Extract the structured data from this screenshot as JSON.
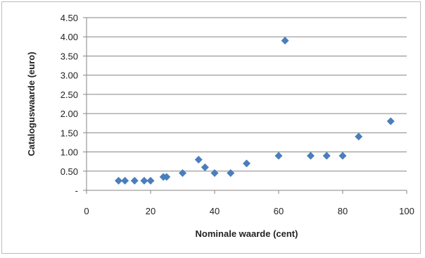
{
  "chart_data": {
    "type": "scatter",
    "title": "",
    "xlabel": "Nominale waarde (cent)",
    "ylabel": "Cataloguswaarde (euro)",
    "xlim": [
      0,
      100
    ],
    "ylim": [
      0,
      4.5
    ],
    "xticks": [
      0,
      20,
      40,
      60,
      80,
      100
    ],
    "xtick_labels": [
      "0",
      "20",
      "40",
      "60",
      "80",
      "100"
    ],
    "yticks": [
      0,
      0.5,
      1.0,
      1.5,
      2.0,
      2.5,
      3.0,
      3.5,
      4.0,
      4.5
    ],
    "ytick_labels": [
      "-",
      "0.50",
      "1.00",
      "1.50",
      "2.00",
      "2.50",
      "3.00",
      "3.50",
      "4.00",
      "4.50"
    ],
    "grid": "horizontal",
    "legend": "none",
    "marker": "diamond",
    "color": "#4a7ebb",
    "points": [
      {
        "x": 10,
        "y": 0.25
      },
      {
        "x": 12,
        "y": 0.25
      },
      {
        "x": 15,
        "y": 0.25
      },
      {
        "x": 18,
        "y": 0.25
      },
      {
        "x": 20,
        "y": 0.25
      },
      {
        "x": 24,
        "y": 0.35
      },
      {
        "x": 25,
        "y": 0.35
      },
      {
        "x": 30,
        "y": 0.45
      },
      {
        "x": 35,
        "y": 0.8
      },
      {
        "x": 37,
        "y": 0.6
      },
      {
        "x": 40,
        "y": 0.45
      },
      {
        "x": 45,
        "y": 0.45
      },
      {
        "x": 50,
        "y": 0.7
      },
      {
        "x": 60,
        "y": 0.9
      },
      {
        "x": 62,
        "y": 3.9
      },
      {
        "x": 70,
        "y": 0.9
      },
      {
        "x": 75,
        "y": 0.9
      },
      {
        "x": 80,
        "y": 0.9
      },
      {
        "x": 85,
        "y": 1.4
      },
      {
        "x": 95,
        "y": 1.8
      }
    ]
  }
}
